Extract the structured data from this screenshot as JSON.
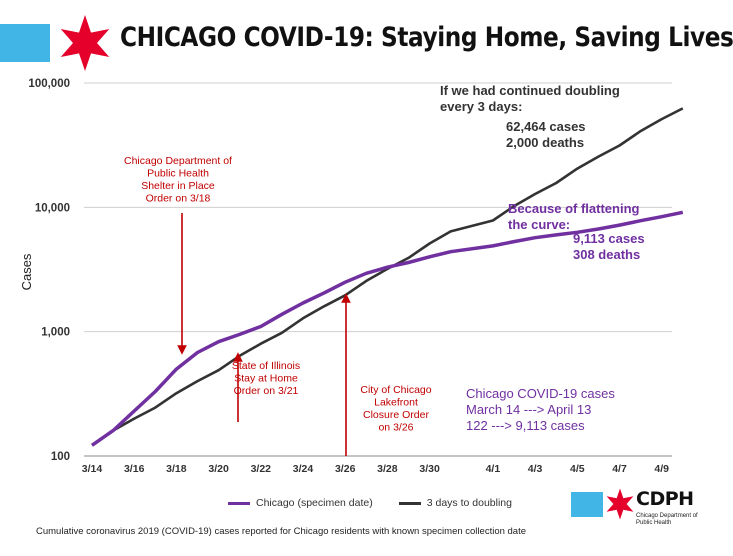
{
  "header": {
    "title": "CHICAGO COVID-19: Staying Home, Saving Lives",
    "accent_blue": "#41b6e6",
    "star_red": "#e4002b"
  },
  "footnote": "Cumulative coronavirus 2019 (COVID-19) cases reported for Chicago residents with known specimen collection date",
  "logo": {
    "text": "CDPH",
    "sub": "Chicago Department of Public Health"
  },
  "chart_data": {
    "type": "line",
    "title": "CHICAGO COVID-19: Staying Home, Saving Lives",
    "ylabel": "Cases",
    "xlabel": "",
    "y_scale": "log",
    "ylim": [
      100,
      100000
    ],
    "y_ticks": [
      {
        "value": 100,
        "label": "100"
      },
      {
        "value": 1000,
        "label": "1,000"
      },
      {
        "value": 10000,
        "label": "10,000"
      },
      {
        "value": 100000,
        "label": "100,000"
      }
    ],
    "x_ticks": [
      "3/14",
      "3/16",
      "3/18",
      "3/20",
      "3/22",
      "3/24",
      "3/26",
      "3/28",
      "3/30",
      "4/1",
      "4/3",
      "4/5",
      "4/7",
      "4/9"
    ],
    "x_range": [
      "3/14",
      "4/10"
    ],
    "grid": "horizontal",
    "legend_position": "bottom",
    "series": [
      {
        "name": "Chicago (specimen date)",
        "color": "#7030a0",
        "x": [
          "3/14",
          "3/15",
          "3/16",
          "3/17",
          "3/18",
          "3/19",
          "3/20",
          "3/21",
          "3/22",
          "3/23",
          "3/24",
          "3/25",
          "3/26",
          "3/27",
          "3/28",
          "3/29",
          "3/30",
          "3/31",
          "4/1",
          "4/2",
          "4/3",
          "4/4",
          "4/5",
          "4/6",
          "4/7",
          "4/8",
          "4/9",
          "4/10"
        ],
        "values": [
          122,
          160,
          230,
          330,
          500,
          680,
          830,
          950,
          1100,
          1380,
          1700,
          2050,
          2500,
          2950,
          3300,
          3600,
          4000,
          4400,
          4900,
          5300,
          5700,
          6000,
          6300,
          6700,
          7200,
          7800,
          8400,
          9113
        ]
      },
      {
        "name": "3 days to doubling",
        "color": "#333333",
        "x": [
          "3/14",
          "3/15",
          "3/16",
          "3/17",
          "3/18",
          "3/19",
          "3/20",
          "3/21",
          "3/22",
          "3/23",
          "3/24",
          "3/25",
          "3/26",
          "3/27",
          "3/28",
          "3/29",
          "3/30",
          "3/31",
          "4/1",
          "4/2",
          "4/3",
          "4/4",
          "4/5",
          "4/6",
          "4/7",
          "4/8",
          "4/9",
          "4/10"
        ],
        "values": [
          122,
          160,
          200,
          245,
          320,
          400,
          490,
          640,
          800,
          980,
          1280,
          1600,
          1960,
          2560,
          3200,
          3920,
          5120,
          6400,
          7840,
          10240,
          12800,
          15700,
          20500,
          25600,
          31400,
          41000,
          51200,
          62464
        ]
      }
    ],
    "annotations": [
      {
        "lines": [
          "Chicago Department of",
          "Public Health",
          "Shelter in Place",
          "Order on 3/18"
        ],
        "color": "#c00000",
        "date": "3/18"
      },
      {
        "lines": [
          "State of Illinois",
          "Stay at Home",
          "Order on 3/21"
        ],
        "color": "#c00000",
        "date": "3/21"
      },
      {
        "lines": [
          "City of Chicago",
          "Lakefront",
          "Closure Order",
          "on 3/26"
        ],
        "color": "#c00000",
        "date": "3/26"
      },
      {
        "lines": [
          "If we had continued doubling",
          "every 3 days:"
        ],
        "color": "#333333"
      },
      {
        "lines": [
          "62,464 cases",
          "2,000 deaths"
        ],
        "color": "#333333"
      },
      {
        "lines": [
          "Because of flattening",
          "the curve:"
        ],
        "color": "#7030a0"
      },
      {
        "lines": [
          "9,113 cases",
          "308 deaths"
        ],
        "color": "#7030a0"
      },
      {
        "lines": [
          "Chicago COVID-19 cases",
          "March 14 ---> April 13",
          "122 ---> 9,113 cases"
        ],
        "color": "#7030a0"
      }
    ]
  }
}
